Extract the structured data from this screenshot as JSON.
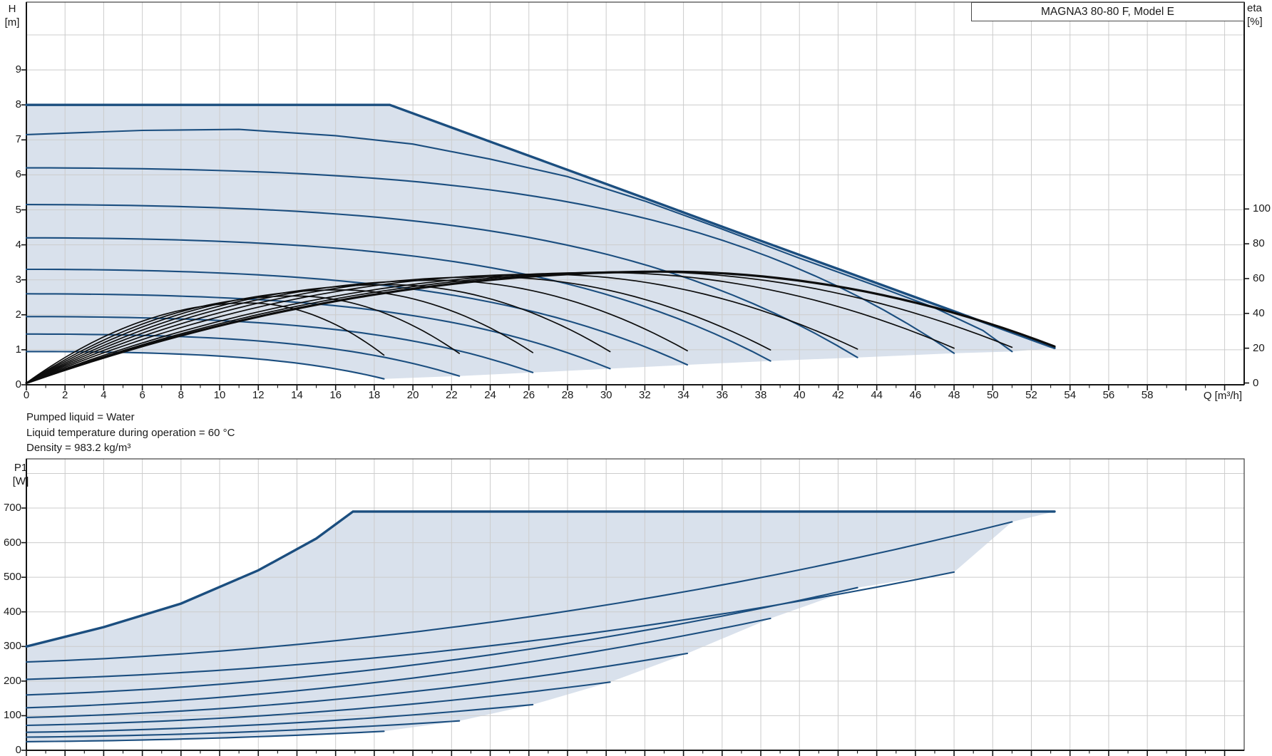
{
  "title_box": {
    "label": "MAGNA3 80-80 F, Model E"
  },
  "notes": {
    "line1": "Pumped liquid = Water",
    "line2": "Liquid temperature during operation = 60 °C",
    "line3": "Density = 983.2 kg/m³"
  },
  "axes": {
    "h_unit_line1": "H",
    "h_unit_line2": "[m]",
    "eta_unit_line1": "eta",
    "eta_unit_line2": "[%]",
    "q_unit": "Q [m³/h]",
    "p_unit_line1": "P1",
    "p_unit_line2": "[W]"
  },
  "colors": {
    "curve_blue": "#1b4e7f",
    "curve_black": "#0d0d0d",
    "envelope_fill": "#d9e1ec",
    "grid": "#cccccc",
    "frame": "#3f3f3f",
    "axis": "#141414",
    "text": "#1a1a1a"
  },
  "chart_data": [
    {
      "type": "line",
      "name": "head-and-efficiency-curves",
      "title": "MAGNA3 80-80 F, Model E",
      "xlabel": "Q [m³/h]",
      "ylabel_left": "H [m]",
      "ylabel_right": "eta [%]",
      "x_range": [
        0,
        63
      ],
      "x_tick_step": 2,
      "x_tick_label_max": 58,
      "h_range": [
        0,
        10.8
      ],
      "h_ticks": [
        0,
        1,
        2,
        3,
        4,
        5,
        6,
        7,
        8,
        9
      ],
      "eta_ticks": [
        0,
        20,
        40,
        60,
        80,
        100
      ],
      "grid": true,
      "speeds": [
        {
          "h0": 0.95,
          "qe": 18.5,
          "he": 0.17,
          "cc": 0.4,
          "eta_peak": 46,
          "eta_end": 16,
          "p0": 25,
          "pe": 55
        },
        {
          "h0": 1.45,
          "qe": 22.4,
          "he": 0.25,
          "cc": 0.4,
          "eta_peak": 50,
          "eta_end": 17,
          "p0": 38,
          "pe": 85
        },
        {
          "h0": 1.95,
          "qe": 26.2,
          "he": 0.35,
          "cc": 0.4,
          "eta_peak": 53.5,
          "eta_end": 17.5,
          "p0": 52,
          "pe": 132
        },
        {
          "h0": 2.6,
          "qe": 30.2,
          "he": 0.46,
          "cc": 0.4,
          "eta_peak": 56.5,
          "eta_end": 18,
          "p0": 72,
          "pe": 197
        },
        {
          "h0": 3.3,
          "qe": 34.2,
          "he": 0.57,
          "cc": 0.4,
          "eta_peak": 59,
          "eta_end": 18.5,
          "p0": 95,
          "pe": 280
        },
        {
          "h0": 4.2,
          "qe": 38.5,
          "he": 0.68,
          "cc": 0.38,
          "eta_peak": 61,
          "eta_end": 19,
          "p0": 123,
          "pe": 381
        },
        {
          "h0": 5.15,
          "qe": 43.0,
          "he": 0.78,
          "cc": 0.35,
          "eta_peak": 62.5,
          "eta_end": 19.5,
          "p0": 160,
          "pe": 470
        },
        {
          "h0": 6.2,
          "qe": 48.0,
          "he": 0.9,
          "cc": 0.3,
          "eta_peak": 63.5,
          "eta_end": 20,
          "p0": 205,
          "pe": 515
        },
        {
          "h0": 7.15,
          "qe": 51.0,
          "he": 0.95,
          "eta_peak": 64,
          "eta_end": 20.5,
          "p0": 255,
          "pe": 660,
          "head_points": [
            [
              0,
              7.15
            ],
            [
              6,
              7.27
            ],
            [
              11,
              7.3
            ],
            [
              16,
              7.12
            ],
            [
              20,
              6.88
            ],
            [
              24,
              6.45
            ],
            [
              28,
              5.95
            ],
            [
              32,
              5.25
            ],
            [
              36,
              4.45
            ],
            [
              40,
              3.62
            ],
            [
              44,
              2.82
            ],
            [
              47,
              2.2
            ],
            [
              49.5,
              1.55
            ],
            [
              51,
              0.95
            ]
          ]
        },
        {
          "h0": 8.0,
          "qe": 53.2,
          "he": 1.05,
          "eta_peak": 64,
          "eta_end": 21,
          "p0": 300,
          "pe": 690,
          "head_points": [
            [
              0,
              8
            ],
            [
              18.8,
              8
            ],
            [
              24,
              6.95
            ],
            [
              30,
              5.74
            ],
            [
              36,
              4.52
            ],
            [
              42,
              3.31
            ],
            [
              48,
              2.1
            ],
            [
              51,
              1.49
            ],
            [
              53.2,
              1.05
            ]
          ],
          "power_points": [
            [
              0,
              300
            ],
            [
              4,
              356
            ],
            [
              8,
              424
            ],
            [
              12,
              520
            ],
            [
              15,
              612
            ],
            [
              16.9,
              690
            ],
            [
              30,
              690
            ],
            [
              53.2,
              690
            ]
          ]
        }
      ]
    },
    {
      "type": "line",
      "name": "power-curves",
      "ylabel": "P1 [W]",
      "x_range": [
        0,
        63
      ],
      "p_range": [
        0,
        842
      ],
      "p_ticks": [
        0,
        100,
        200,
        300,
        400,
        500,
        600,
        700
      ],
      "grid": true
    }
  ]
}
